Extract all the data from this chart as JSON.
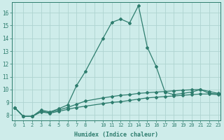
{
  "xlabel": "Humidex (Indice chaleur)",
  "bg_color": "#ceecea",
  "line_color": "#2e7d6e",
  "grid_color": "#aed4d0",
  "x_ticks_labels": [
    "0",
    "1",
    "2",
    "3",
    "4",
    "5",
    "6",
    "7",
    "8",
    "",
    "10",
    "11",
    "12",
    "13",
    "14",
    "15",
    "16",
    "17",
    "18",
    "19",
    "20",
    "21",
    "22",
    "23"
  ],
  "x_ticks_pos": [
    0,
    1,
    2,
    3,
    4,
    5,
    6,
    7,
    8,
    9,
    10,
    11,
    12,
    13,
    14,
    15,
    16,
    17,
    18,
    19,
    20,
    21,
    22,
    23
  ],
  "y_ticks": [
    8,
    9,
    10,
    11,
    12,
    13,
    14,
    15,
    16
  ],
  "xlim": [
    -0.3,
    23.3
  ],
  "ylim": [
    7.6,
    16.8
  ],
  "line1_x": [
    0,
    1,
    2,
    3,
    4,
    5,
    6,
    7,
    8,
    10,
    11,
    12,
    13,
    14,
    15,
    16,
    17,
    18,
    19,
    20,
    21,
    22,
    23
  ],
  "line1_y": [
    8.6,
    7.9,
    7.9,
    8.4,
    8.25,
    8.5,
    8.8,
    10.3,
    11.4,
    14.0,
    15.25,
    15.5,
    15.2,
    16.55,
    13.3,
    11.8,
    9.8,
    9.6,
    9.7,
    9.8,
    10.0,
    9.7,
    9.65
  ],
  "line2_x": [
    0,
    1,
    2,
    3,
    4,
    5,
    6,
    7,
    8,
    10,
    11,
    12,
    13,
    14,
    15,
    16,
    17,
    18,
    19,
    20,
    21,
    22,
    23
  ],
  "line2_y": [
    8.6,
    7.9,
    7.9,
    8.3,
    8.2,
    8.4,
    8.6,
    8.85,
    9.1,
    9.35,
    9.45,
    9.55,
    9.6,
    9.7,
    9.75,
    9.8,
    9.85,
    9.9,
    9.95,
    9.98,
    10.0,
    9.85,
    9.7
  ],
  "line3_x": [
    0,
    1,
    2,
    3,
    4,
    5,
    6,
    7,
    8,
    10,
    11,
    12,
    13,
    14,
    15,
    16,
    17,
    18,
    19,
    20,
    21,
    22,
    23
  ],
  "line3_y": [
    8.6,
    7.9,
    7.9,
    8.25,
    8.15,
    8.3,
    8.45,
    8.6,
    8.7,
    8.9,
    9.0,
    9.05,
    9.15,
    9.25,
    9.35,
    9.4,
    9.45,
    9.5,
    9.55,
    9.6,
    9.65,
    9.65,
    9.6
  ]
}
